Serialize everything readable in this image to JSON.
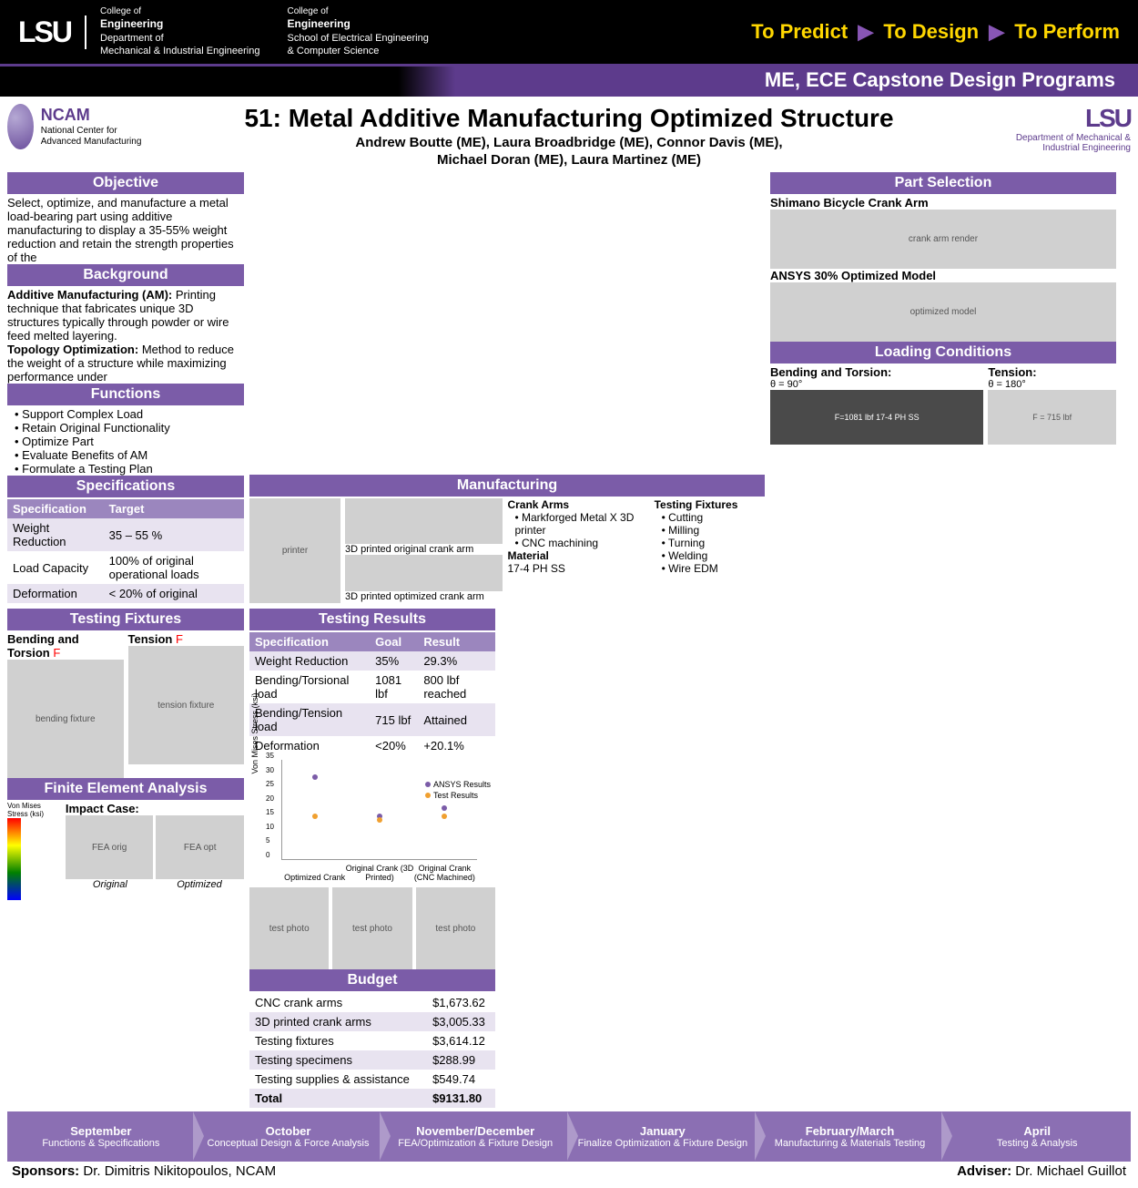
{
  "header": {
    "lsu": "LSU",
    "dept1_coe": "College of",
    "dept1_eng": "Engineering",
    "dept1_name1": "Department of",
    "dept1_name2": "Mechanical & Industrial Engineering",
    "dept2_coe": "College of",
    "dept2_eng": "Engineering",
    "dept2_name1": "School of Electrical Engineering",
    "dept2_name2": "& Computer Science",
    "tag_predict": "To Predict",
    "tag_design": "To Design",
    "tag_perform": "To Perform",
    "subtitle": "ME, ECE Capstone Design Programs"
  },
  "ncam": {
    "label": "NCAM",
    "sub": "National Center for Advanced Manufacturing"
  },
  "title": "51: Metal Additive Manufacturing Optimized Structure",
  "authors1": "Andrew Boutte (ME), Laura Broadbridge (ME), Connor Davis (ME),",
  "authors2": "Michael Doran (ME), Laura Martinez (ME)",
  "lsu_right": {
    "lsu": "LSU",
    "dept": "Department of Mechanical & Industrial Engineering"
  },
  "sections": {
    "objective": "Objective",
    "objective_text": "Select, optimize, and manufacture a metal load-bearing part using additive manufacturing to display a 35-55% weight reduction and retain the strength properties of the",
    "background": "Background",
    "bg_am_label": "Additive Manufacturing (AM):",
    "bg_am_text": "Printing technique that fabricates unique 3D structures typically through powder or wire feed melted layering.",
    "bg_to_label": "Topology Optimization:",
    "bg_to_text": "Method to reduce the weight of a structure while maximizing performance under",
    "functions": "Functions",
    "functions_list": [
      "Support Complex Load",
      "Retain Original Functionality",
      "Optimize Part",
      "Evaluate Benefits of AM",
      "Formulate a Testing Plan"
    ],
    "specifications": "Specifications",
    "part_selection": "Part Selection",
    "part1": "Shimano Bicycle Crank Arm",
    "part2": "ANSYS 30% Optimized Model",
    "loading": "Loading Conditions",
    "load_bt": "Bending and Torsion:",
    "load_t": "Tension:",
    "load_theta90": "θ = 90°",
    "load_theta180": "θ = 180°",
    "load_f1": "F=1081 lbf",
    "load_f2": "F = 715 lbf",
    "load_mat": "17-4 PH SS",
    "testing_fixtures": "Testing Fixtures",
    "tf_bt": "Bending and Torsion",
    "tf_t": "Tension",
    "fea": "Finite Element Analysis",
    "fea_vm": "Von Mises Stress (ksi)",
    "fea_impact": "Impact Case:",
    "fea_orig": "Original",
    "fea_opt": "Optimized",
    "manufacturing": "Manufacturing",
    "mfg_ca": "Crank Arms",
    "mfg_tf": "Testing Fixtures",
    "mfg_ca_list": [
      "Markforged Metal X 3D printer",
      "CNC machining"
    ],
    "mfg_tf_list": [
      "Cutting",
      "Milling",
      "Turning",
      "Welding",
      "Wire EDM"
    ],
    "mfg_mat_label": "Material",
    "mfg_mat": "17-4 PH SS",
    "mfg_cap1": "3D printed original crank arm",
    "mfg_cap2": "3D printed optimized crank arm",
    "testing_results": "Testing Results",
    "budget": "Budget"
  },
  "spec_table": {
    "cols": [
      "Specification",
      "Target"
    ],
    "rows": [
      [
        "Weight Reduction",
        "35 – 55 %"
      ],
      [
        "Load Capacity",
        "100% of original operational loads"
      ],
      [
        "Deformation",
        "< 20% of original"
      ]
    ]
  },
  "results_table": {
    "cols": [
      "Specification",
      "Goal",
      "Result"
    ],
    "rows": [
      [
        "Weight Reduction",
        "35%",
        "29.3%"
      ],
      [
        "Bending/Torsional load",
        "1081 lbf",
        "800 lbf reached"
      ],
      [
        "Bending/Tension load",
        "715 lbf",
        "Attained"
      ],
      [
        "Deformation",
        "<20%",
        "+20.1%"
      ]
    ]
  },
  "chart": {
    "ylabel": "Von Mises Stress (ksi)",
    "ylim": [
      0,
      35
    ],
    "yticks": [
      0,
      5,
      10,
      15,
      20,
      25,
      30,
      35
    ],
    "categories": [
      "Optimized Crank",
      "Original Crank (3D Printed)",
      "Original Crank (CNC Machined)"
    ],
    "series": [
      {
        "name": "ANSYS Results",
        "color": "#7b5ca8",
        "values": [
          28,
          14,
          17
        ]
      },
      {
        "name": "Test Results",
        "color": "#f0a030",
        "values": [
          14,
          13,
          14
        ]
      }
    ]
  },
  "budget_table": {
    "rows": [
      [
        "CNC crank arms",
        "$1,673.62"
      ],
      [
        "3D printed crank arms",
        "$3,005.33"
      ],
      [
        "Testing fixtures",
        "$3,614.12"
      ],
      [
        "Testing specimens",
        "$288.99"
      ],
      [
        "Testing supplies & assistance",
        "$549.74"
      ],
      [
        "Total",
        "$9131.80"
      ]
    ]
  },
  "timeline": [
    {
      "month": "September",
      "task": "Functions & Specifications"
    },
    {
      "month": "October",
      "task": "Conceptual Design & Force Analysis"
    },
    {
      "month": "November/December",
      "task": "FEA/Optimization & Fixture Design"
    },
    {
      "month": "January",
      "task": "Finalize Optimization & Fixture Design"
    },
    {
      "month": "February/March",
      "task": "Manufacturing & Materials Testing"
    },
    {
      "month": "April",
      "task": "Testing & Analysis"
    }
  ],
  "sponsors_label": "Sponsors:",
  "sponsors": "Dr. Dimitris Nikitopoulos, NCAM",
  "adviser_label": "Adviser:",
  "adviser": "Dr. Michael Guillot"
}
